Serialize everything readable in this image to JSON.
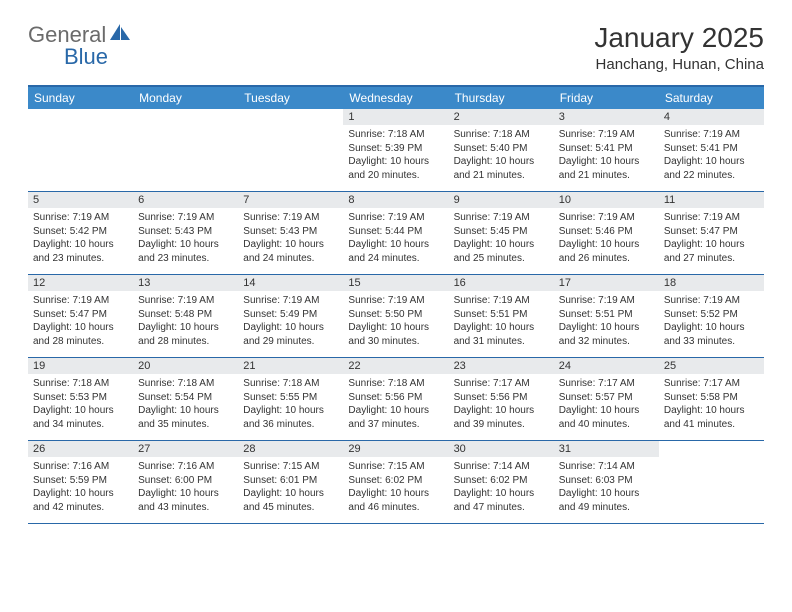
{
  "logo": {
    "general": "General",
    "blue": "Blue"
  },
  "title": "January 2025",
  "location": "Hanchang, Hunan, China",
  "colors": {
    "header_bg": "#3b89c9",
    "border": "#2968a8",
    "daynum_bg": "#e8eaec",
    "text": "#333333",
    "logo_gray": "#6b6b6b",
    "logo_blue": "#2968a8",
    "page_bg": "#ffffff"
  },
  "typography": {
    "title_fontsize": 28,
    "location_fontsize": 15,
    "dayheader_fontsize": 12,
    "daynum_fontsize": 11,
    "body_fontsize": 10
  },
  "layout": {
    "columns": 7,
    "rows": 5,
    "cell_min_height": 82
  },
  "day_headers": [
    "Sunday",
    "Monday",
    "Tuesday",
    "Wednesday",
    "Thursday",
    "Friday",
    "Saturday"
  ],
  "weeks": [
    [
      {
        "num": "",
        "sunrise": "",
        "sunset": "",
        "daylight": ""
      },
      {
        "num": "",
        "sunrise": "",
        "sunset": "",
        "daylight": ""
      },
      {
        "num": "",
        "sunrise": "",
        "sunset": "",
        "daylight": ""
      },
      {
        "num": "1",
        "sunrise": "Sunrise: 7:18 AM",
        "sunset": "Sunset: 5:39 PM",
        "daylight": "Daylight: 10 hours and 20 minutes."
      },
      {
        "num": "2",
        "sunrise": "Sunrise: 7:18 AM",
        "sunset": "Sunset: 5:40 PM",
        "daylight": "Daylight: 10 hours and 21 minutes."
      },
      {
        "num": "3",
        "sunrise": "Sunrise: 7:19 AM",
        "sunset": "Sunset: 5:41 PM",
        "daylight": "Daylight: 10 hours and 21 minutes."
      },
      {
        "num": "4",
        "sunrise": "Sunrise: 7:19 AM",
        "sunset": "Sunset: 5:41 PM",
        "daylight": "Daylight: 10 hours and 22 minutes."
      }
    ],
    [
      {
        "num": "5",
        "sunrise": "Sunrise: 7:19 AM",
        "sunset": "Sunset: 5:42 PM",
        "daylight": "Daylight: 10 hours and 23 minutes."
      },
      {
        "num": "6",
        "sunrise": "Sunrise: 7:19 AM",
        "sunset": "Sunset: 5:43 PM",
        "daylight": "Daylight: 10 hours and 23 minutes."
      },
      {
        "num": "7",
        "sunrise": "Sunrise: 7:19 AM",
        "sunset": "Sunset: 5:43 PM",
        "daylight": "Daylight: 10 hours and 24 minutes."
      },
      {
        "num": "8",
        "sunrise": "Sunrise: 7:19 AM",
        "sunset": "Sunset: 5:44 PM",
        "daylight": "Daylight: 10 hours and 24 minutes."
      },
      {
        "num": "9",
        "sunrise": "Sunrise: 7:19 AM",
        "sunset": "Sunset: 5:45 PM",
        "daylight": "Daylight: 10 hours and 25 minutes."
      },
      {
        "num": "10",
        "sunrise": "Sunrise: 7:19 AM",
        "sunset": "Sunset: 5:46 PM",
        "daylight": "Daylight: 10 hours and 26 minutes."
      },
      {
        "num": "11",
        "sunrise": "Sunrise: 7:19 AM",
        "sunset": "Sunset: 5:47 PM",
        "daylight": "Daylight: 10 hours and 27 minutes."
      }
    ],
    [
      {
        "num": "12",
        "sunrise": "Sunrise: 7:19 AM",
        "sunset": "Sunset: 5:47 PM",
        "daylight": "Daylight: 10 hours and 28 minutes."
      },
      {
        "num": "13",
        "sunrise": "Sunrise: 7:19 AM",
        "sunset": "Sunset: 5:48 PM",
        "daylight": "Daylight: 10 hours and 28 minutes."
      },
      {
        "num": "14",
        "sunrise": "Sunrise: 7:19 AM",
        "sunset": "Sunset: 5:49 PM",
        "daylight": "Daylight: 10 hours and 29 minutes."
      },
      {
        "num": "15",
        "sunrise": "Sunrise: 7:19 AM",
        "sunset": "Sunset: 5:50 PM",
        "daylight": "Daylight: 10 hours and 30 minutes."
      },
      {
        "num": "16",
        "sunrise": "Sunrise: 7:19 AM",
        "sunset": "Sunset: 5:51 PM",
        "daylight": "Daylight: 10 hours and 31 minutes."
      },
      {
        "num": "17",
        "sunrise": "Sunrise: 7:19 AM",
        "sunset": "Sunset: 5:51 PM",
        "daylight": "Daylight: 10 hours and 32 minutes."
      },
      {
        "num": "18",
        "sunrise": "Sunrise: 7:19 AM",
        "sunset": "Sunset: 5:52 PM",
        "daylight": "Daylight: 10 hours and 33 minutes."
      }
    ],
    [
      {
        "num": "19",
        "sunrise": "Sunrise: 7:18 AM",
        "sunset": "Sunset: 5:53 PM",
        "daylight": "Daylight: 10 hours and 34 minutes."
      },
      {
        "num": "20",
        "sunrise": "Sunrise: 7:18 AM",
        "sunset": "Sunset: 5:54 PM",
        "daylight": "Daylight: 10 hours and 35 minutes."
      },
      {
        "num": "21",
        "sunrise": "Sunrise: 7:18 AM",
        "sunset": "Sunset: 5:55 PM",
        "daylight": "Daylight: 10 hours and 36 minutes."
      },
      {
        "num": "22",
        "sunrise": "Sunrise: 7:18 AM",
        "sunset": "Sunset: 5:56 PM",
        "daylight": "Daylight: 10 hours and 37 minutes."
      },
      {
        "num": "23",
        "sunrise": "Sunrise: 7:17 AM",
        "sunset": "Sunset: 5:56 PM",
        "daylight": "Daylight: 10 hours and 39 minutes."
      },
      {
        "num": "24",
        "sunrise": "Sunrise: 7:17 AM",
        "sunset": "Sunset: 5:57 PM",
        "daylight": "Daylight: 10 hours and 40 minutes."
      },
      {
        "num": "25",
        "sunrise": "Sunrise: 7:17 AM",
        "sunset": "Sunset: 5:58 PM",
        "daylight": "Daylight: 10 hours and 41 minutes."
      }
    ],
    [
      {
        "num": "26",
        "sunrise": "Sunrise: 7:16 AM",
        "sunset": "Sunset: 5:59 PM",
        "daylight": "Daylight: 10 hours and 42 minutes."
      },
      {
        "num": "27",
        "sunrise": "Sunrise: 7:16 AM",
        "sunset": "Sunset: 6:00 PM",
        "daylight": "Daylight: 10 hours and 43 minutes."
      },
      {
        "num": "28",
        "sunrise": "Sunrise: 7:15 AM",
        "sunset": "Sunset: 6:01 PM",
        "daylight": "Daylight: 10 hours and 45 minutes."
      },
      {
        "num": "29",
        "sunrise": "Sunrise: 7:15 AM",
        "sunset": "Sunset: 6:02 PM",
        "daylight": "Daylight: 10 hours and 46 minutes."
      },
      {
        "num": "30",
        "sunrise": "Sunrise: 7:14 AM",
        "sunset": "Sunset: 6:02 PM",
        "daylight": "Daylight: 10 hours and 47 minutes."
      },
      {
        "num": "31",
        "sunrise": "Sunrise: 7:14 AM",
        "sunset": "Sunset: 6:03 PM",
        "daylight": "Daylight: 10 hours and 49 minutes."
      },
      {
        "num": "",
        "sunrise": "",
        "sunset": "",
        "daylight": ""
      }
    ]
  ]
}
